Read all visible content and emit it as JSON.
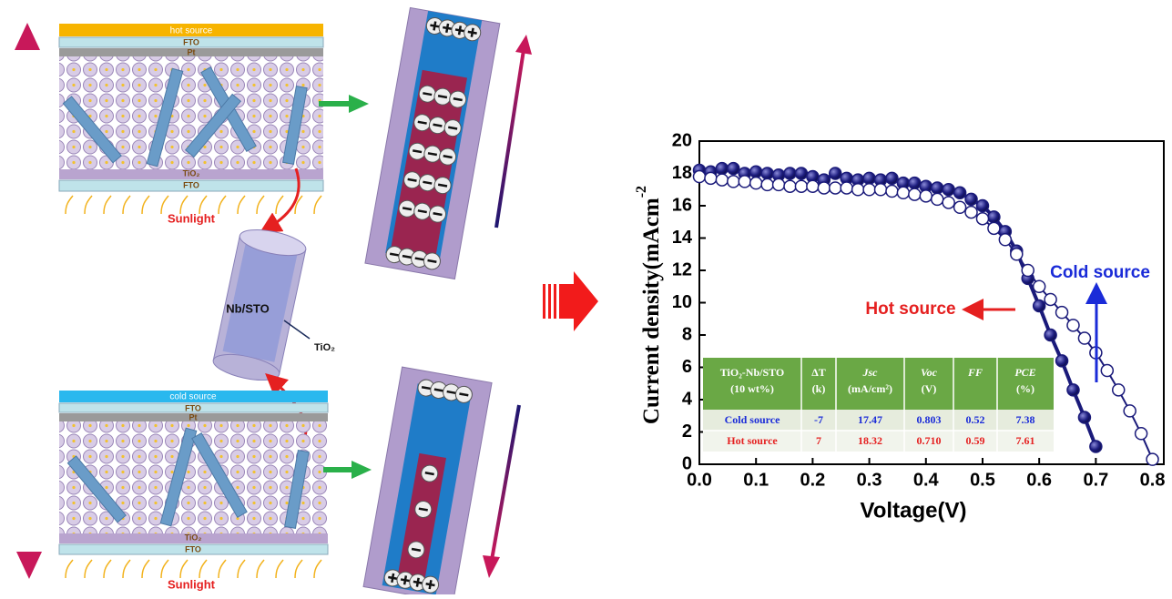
{
  "chart_data": {
    "type": "line",
    "ylabel": "Current density(mAcm",
    "ylabel_sup": "-2",
    "xlabel": "Voltage(V)",
    "xlim": [
      0,
      0.82
    ],
    "ylim": [
      0,
      20
    ],
    "xticks": [
      {
        "value": 0,
        "label": "0.0"
      },
      0.1,
      0.2,
      0.3,
      0.4,
      0.5,
      0.6,
      0.7,
      0.8
    ],
    "yticks": [
      0,
      2,
      4,
      6,
      8,
      10,
      12,
      14,
      16,
      18,
      20
    ],
    "series": [
      {
        "name": "Hot source",
        "color": "#1a1a7a",
        "marker": "filled",
        "x": [
          0,
          0.02,
          0.04,
          0.06,
          0.08,
          0.1,
          0.12,
          0.14,
          0.16,
          0.18,
          0.2,
          0.22,
          0.24,
          0.26,
          0.28,
          0.3,
          0.32,
          0.34,
          0.36,
          0.38,
          0.4,
          0.42,
          0.44,
          0.46,
          0.48,
          0.5,
          0.52,
          0.54,
          0.56,
          0.58,
          0.6,
          0.62,
          0.64,
          0.66,
          0.68,
          0.7
        ],
        "values": [
          18.2,
          18.1,
          18.3,
          18.3,
          18.0,
          18.1,
          18.0,
          17.9,
          18.0,
          18.0,
          17.8,
          17.6,
          18.0,
          17.7,
          17.6,
          17.7,
          17.6,
          17.7,
          17.4,
          17.4,
          17.2,
          17.1,
          17.0,
          16.8,
          16.4,
          16.0,
          15.3,
          14.4,
          13.2,
          11.5,
          9.8,
          8.0,
          6.4,
          4.6,
          2.9,
          1.1
        ]
      },
      {
        "name": "Cold source",
        "color": "#1a1a7a",
        "marker": "open",
        "x": [
          0,
          0.02,
          0.04,
          0.06,
          0.08,
          0.1,
          0.12,
          0.14,
          0.16,
          0.18,
          0.2,
          0.22,
          0.24,
          0.26,
          0.28,
          0.3,
          0.32,
          0.34,
          0.36,
          0.38,
          0.4,
          0.42,
          0.44,
          0.46,
          0.48,
          0.5,
          0.52,
          0.54,
          0.56,
          0.58,
          0.6,
          0.62,
          0.64,
          0.66,
          0.68,
          0.7,
          0.72,
          0.74,
          0.76,
          0.78,
          0.8
        ],
        "values": [
          17.8,
          17.7,
          17.6,
          17.5,
          17.5,
          17.4,
          17.3,
          17.3,
          17.2,
          17.2,
          17.2,
          17.1,
          17.1,
          17.1,
          17.0,
          17.0,
          17.0,
          16.9,
          16.8,
          16.7,
          16.6,
          16.4,
          16.2,
          15.9,
          15.6,
          15.2,
          14.6,
          13.9,
          13.0,
          12.0,
          11.0,
          10.2,
          9.4,
          8.6,
          7.8,
          6.9,
          5.8,
          4.6,
          3.3,
          1.9,
          0.3
        ]
      }
    ],
    "annotations": {
      "hot": "Hot source",
      "cold": "Cold source"
    },
    "table": {
      "header": [
        "TiO₂-Nb/STO",
        "ΔT",
        "Jsc",
        "Voc",
        "FF",
        "PCE"
      ],
      "header_units": [
        "(10 wt%)",
        "(k)",
        "(mA/cm²)",
        "(V)",
        "",
        "(%)"
      ],
      "rows": [
        [
          "Cold source",
          "-7",
          "17.47",
          "0.803",
          "0.52",
          "7.38"
        ],
        [
          "Hot source",
          "7",
          "18.32",
          "0.710",
          "0.59",
          "7.61"
        ]
      ]
    }
  },
  "diagram": {
    "top_panel": {
      "source": "hot source",
      "fto_top": "FTO",
      "pt": "Pt",
      "tio2": "TiO₂",
      "fto_bottom": "FTO",
      "light": "Sunlight"
    },
    "cylinder": {
      "core": "Nb/STO",
      "shell": "TiO₂"
    },
    "bottom_panel": {
      "source": "cold source",
      "fto_top": "FTO",
      "pt": "Pt",
      "tio2": "TiO₂",
      "fto_bottom": "FTO",
      "light": "Sunlight"
    }
  }
}
